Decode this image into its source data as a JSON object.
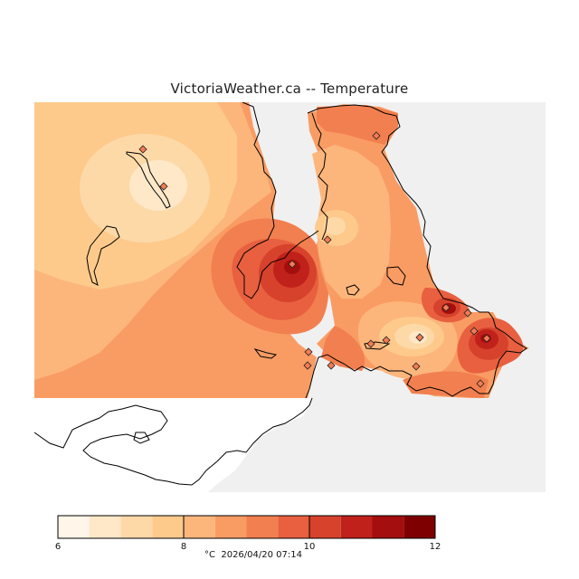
{
  "title": "VictoriaWeather.ca -- Temperature",
  "units": "°C",
  "timestamp": "2026/04/20 07:14",
  "legend": {
    "min": 6,
    "max": 12,
    "ticks": [
      6,
      8,
      10,
      12
    ],
    "bins": [
      {
        "from": 6.0,
        "to": 6.5,
        "color": "#fff5e8"
      },
      {
        "from": 6.5,
        "to": 7.0,
        "color": "#fee8c8"
      },
      {
        "from": 7.0,
        "to": 7.5,
        "color": "#fdd9a8"
      },
      {
        "from": 7.5,
        "to": 8.0,
        "color": "#fdca8c"
      },
      {
        "from": 8.0,
        "to": 8.5,
        "color": "#fcb67c"
      },
      {
        "from": 8.5,
        "to": 9.0,
        "color": "#f99c64"
      },
      {
        "from": 9.0,
        "to": 9.5,
        "color": "#f27f4f"
      },
      {
        "from": 9.5,
        "to": 10.0,
        "color": "#e8603f"
      },
      {
        "from": 10.0,
        "to": 10.5,
        "color": "#d6422b"
      },
      {
        "from": 10.5,
        "to": 11.0,
        "color": "#c0211a"
      },
      {
        "from": 11.0,
        "to": 11.5,
        "color": "#a40e0e"
      },
      {
        "from": 11.5,
        "to": 12.0,
        "color": "#7f0000"
      }
    ]
  },
  "colors": {
    "land_mask": "#f0f0f0",
    "water": "#ffffff",
    "coastline": "#000000",
    "station": "#f37b53"
  },
  "stations_count": 17
}
